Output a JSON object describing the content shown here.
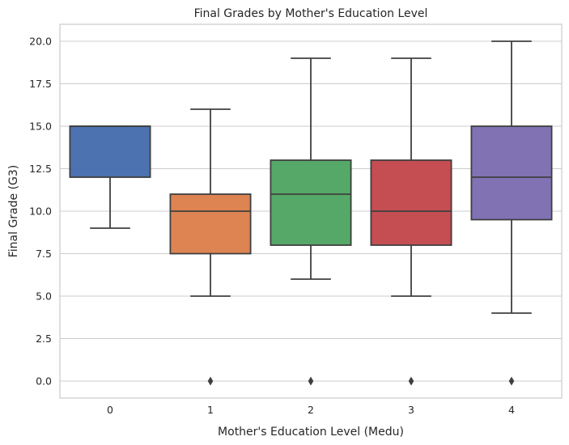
{
  "chart_data": {
    "type": "box",
    "title": "Final Grades by Mother's Education Level",
    "xlabel": "Mother's Education Level (Medu)",
    "ylabel": "Final Grade (G3)",
    "ylim": [
      -1,
      21
    ],
    "yticks": [
      0.0,
      2.5,
      5.0,
      7.5,
      10.0,
      12.5,
      15.0,
      17.5,
      20.0
    ],
    "ytick_labels": [
      "0.0",
      "2.5",
      "5.0",
      "7.5",
      "10.0",
      "12.5",
      "15.0",
      "17.5",
      "20.0"
    ],
    "categories": [
      "0",
      "1",
      "2",
      "3",
      "4"
    ],
    "grid": true,
    "boxes": [
      {
        "category": "0",
        "whisker_low": 9,
        "q1": 12,
        "median": 15,
        "q3": 15,
        "whisker_high": 15,
        "outliers": [],
        "color": "#4c72b0"
      },
      {
        "category": "1",
        "whisker_low": 5,
        "q1": 7.5,
        "median": 10,
        "q3": 11,
        "whisker_high": 16,
        "outliers": [
          0
        ],
        "color": "#dd8452"
      },
      {
        "category": "2",
        "whisker_low": 6,
        "q1": 8,
        "median": 11,
        "q3": 13,
        "whisker_high": 19,
        "outliers": [
          0
        ],
        "color": "#55a868"
      },
      {
        "category": "3",
        "whisker_low": 5,
        "q1": 8,
        "median": 10,
        "q3": 13,
        "whisker_high": 19,
        "outliers": [
          0
        ],
        "color": "#c44e52"
      },
      {
        "category": "4",
        "whisker_low": 4,
        "q1": 9.5,
        "median": 12,
        "q3": 15,
        "whisker_high": 20,
        "outliers": [
          0
        ],
        "color": "#8172b3"
      }
    ]
  }
}
